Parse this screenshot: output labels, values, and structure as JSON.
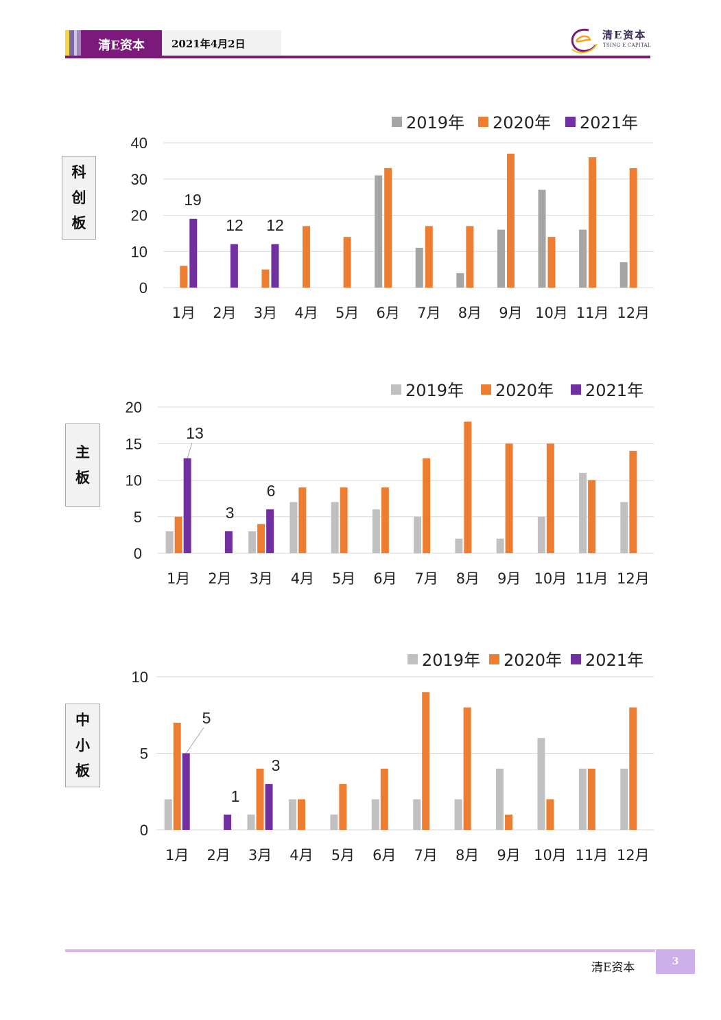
{
  "header": {
    "brand": "清E资本",
    "date": "2021年4月2日",
    "logo_text": "清E资本",
    "logo_sub": "TSING E CAPITAL",
    "bar_colors": [
      "#f7d34a",
      "#7a6aa8",
      "#b49cd2",
      "#9b8ab8"
    ],
    "accent": "#7b1a7b"
  },
  "footer": {
    "brand": "清E资本",
    "page": "3"
  },
  "chart_data": [
    {
      "type": "bar",
      "label": "科创板",
      "categories": [
        "1月",
        "2月",
        "3月",
        "4月",
        "5月",
        "6月",
        "7月",
        "8月",
        "9月",
        "10月",
        "11月",
        "12月"
      ],
      "series": [
        {
          "name": "2019年",
          "color": "#a5a5a5",
          "values": [
            null,
            null,
            null,
            null,
            null,
            31,
            11,
            4,
            16,
            27,
            16,
            7
          ]
        },
        {
          "name": "2020年",
          "color": "#ed7d31",
          "values": [
            6,
            null,
            5,
            17,
            14,
            33,
            17,
            17,
            37,
            14,
            36,
            33
          ]
        },
        {
          "name": "2021年",
          "color": "#7030a0",
          "values": [
            19,
            12,
            12,
            null,
            null,
            null,
            null,
            null,
            null,
            null,
            null,
            null
          ]
        }
      ],
      "yticks": [
        0,
        10,
        20,
        30,
        40
      ],
      "ylim": [
        0,
        40
      ],
      "data_labels": [
        "19",
        "12",
        "12"
      ],
      "legend": "top-right",
      "grid": true
    },
    {
      "type": "bar",
      "label": "主板",
      "categories": [
        "1月",
        "2月",
        "3月",
        "4月",
        "5月",
        "6月",
        "7月",
        "8月",
        "9月",
        "10月",
        "11月",
        "12月"
      ],
      "series": [
        {
          "name": "2019年",
          "color": "#c0c0c0",
          "values": [
            3,
            null,
            3,
            7,
            7,
            6,
            5,
            2,
            2,
            5,
            11,
            7
          ]
        },
        {
          "name": "2020年",
          "color": "#ed7d31",
          "values": [
            5,
            null,
            4,
            9,
            9,
            9,
            13,
            18,
            15,
            15,
            10,
            14
          ]
        },
        {
          "name": "2021年",
          "color": "#7030a0",
          "values": [
            13,
            3,
            6,
            null,
            null,
            null,
            null,
            null,
            null,
            null,
            null,
            null
          ]
        }
      ],
      "yticks": [
        0,
        5,
        10,
        15,
        20
      ],
      "ylim": [
        0,
        20
      ],
      "data_labels": [
        "13",
        "3",
        "6"
      ],
      "legend": "top-right",
      "grid": true
    },
    {
      "type": "bar",
      "label": "中小板",
      "categories": [
        "1月",
        "2月",
        "3月",
        "4月",
        "5月",
        "6月",
        "7月",
        "8月",
        "9月",
        "10月",
        "11月",
        "12月"
      ],
      "series": [
        {
          "name": "2019年",
          "color": "#c0c0c0",
          "values": [
            2,
            null,
            1,
            2,
            1,
            2,
            2,
            2,
            4,
            6,
            4,
            4
          ]
        },
        {
          "name": "2020年",
          "color": "#ed7d31",
          "values": [
            7,
            null,
            4,
            2,
            3,
            4,
            9,
            8,
            1,
            2,
            4,
            8
          ]
        },
        {
          "name": "2021年",
          "color": "#7030a0",
          "values": [
            5,
            1,
            3,
            null,
            null,
            null,
            null,
            null,
            null,
            null,
            null,
            null
          ]
        }
      ],
      "yticks": [
        0,
        5,
        10
      ],
      "ylim": [
        0,
        10
      ],
      "data_labels": [
        "5",
        "1",
        "3"
      ],
      "legend": "top-right",
      "grid": true
    }
  ]
}
